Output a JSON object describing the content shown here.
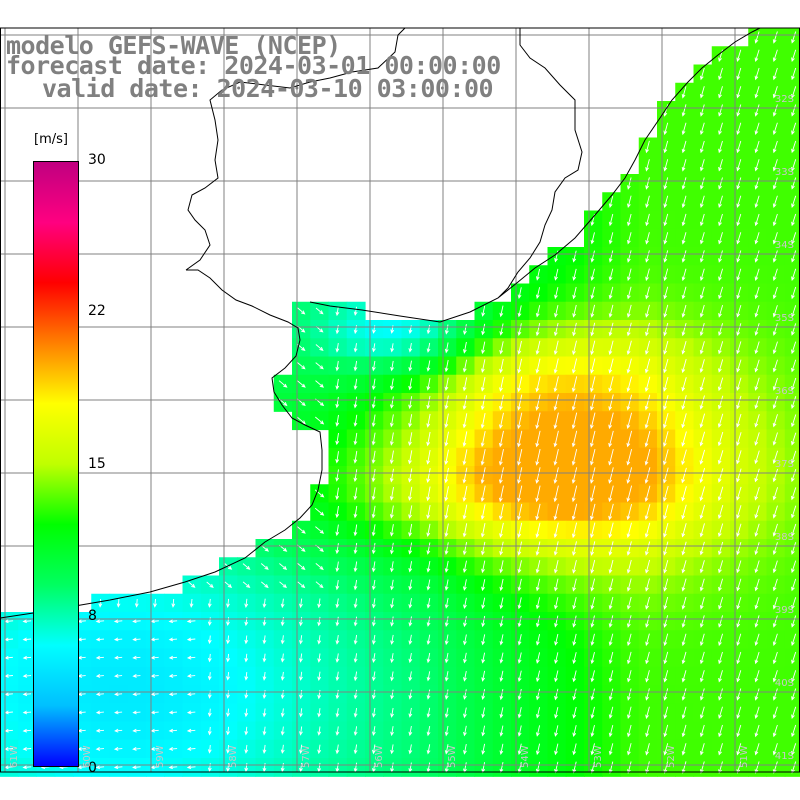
{
  "title": {
    "line1": "modelo GEFS-WAVE (NCEP)",
    "line2": "forecast date: 2024-03-01 00:00:00",
    "line3": "valid date: 2024-03-10 03:00:00"
  },
  "colorbar": {
    "unit": "[m/s]",
    "ticks": [
      "30",
      "22",
      "15",
      "8",
      "0"
    ],
    "range": [
      0,
      30
    ],
    "stops": [
      "#0000ff",
      "#00c0ff",
      "#00ffff",
      "#00ff60",
      "#00ff00",
      "#c0ff00",
      "#ffff00",
      "#ff8000",
      "#ff0000",
      "#ff0080",
      "#c00080"
    ]
  },
  "map": {
    "variable": "wind speed",
    "land_color": "#ffffff",
    "grid_color": "#808080",
    "arrow_color": "#ffffff",
    "lat_labels": [
      "32S",
      "33S",
      "34S",
      "35S",
      "36S",
      "37S",
      "38S",
      "39S",
      "40S",
      "41S"
    ],
    "lon_labels": [
      "61W",
      "60W",
      "59W",
      "58W",
      "57W",
      "56W",
      "55W",
      "54W",
      "53W",
      "52W",
      "51W"
    ]
  }
}
